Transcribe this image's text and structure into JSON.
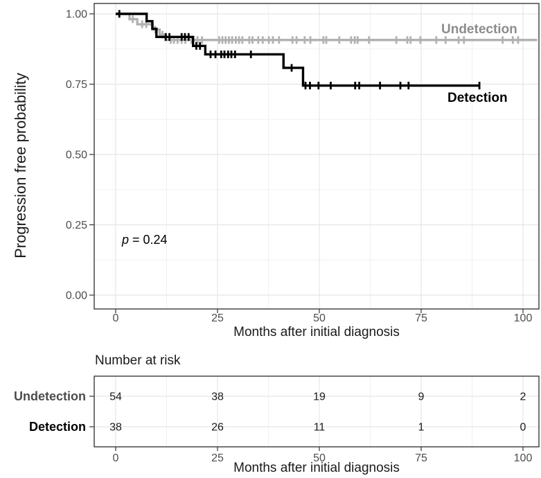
{
  "chart_data": {
    "type": "line",
    "subtype": "kaplan-meier-step",
    "title": "",
    "xlabel": "Months after initial diagnosis",
    "ylabel": "Progression free probability",
    "xlim": [
      0,
      100
    ],
    "ylim": [
      0,
      1
    ],
    "xticks": [
      0,
      25,
      50,
      75,
      100
    ],
    "xtick_labels": [
      "0",
      "25",
      "50",
      "75",
      "100"
    ],
    "yticks": [
      0,
      0.25,
      0.5,
      0.75,
      1
    ],
    "ytick_labels": [
      "0.00",
      "0.25",
      "0.50",
      "0.75",
      "1.00"
    ],
    "grid": true,
    "legend_position": "inline-right",
    "annotation": {
      "symbol": "p",
      "rest": " = 0.24"
    },
    "colors": {
      "grid_major": "#e5e5e5",
      "grid_minor": "#f0f0f0",
      "panel_border": "#2b2b2b",
      "tick": "#333333",
      "tick_label": "#4d4d4d",
      "axis_title": "#1a1a1a"
    },
    "series": [
      {
        "name": "Undetection",
        "color": "#b2b2b2",
        "label_color": "#8c8c8c",
        "end": 103.5,
        "steps": [
          [
            0,
            1.0
          ],
          [
            3.4,
            0.981
          ],
          [
            5.3,
            0.963
          ],
          [
            9.1,
            0.944
          ],
          [
            10.8,
            0.926
          ],
          [
            12.2,
            0.907
          ]
        ],
        "censors": [
          4.2,
          6.5,
          7.5,
          9.7,
          11.5,
          13.5,
          14.3,
          15.2,
          16.2,
          17.1,
          18.6,
          20.1,
          21.2,
          25.4,
          26.2,
          27.0,
          27.8,
          28.6,
          29.5,
          30.3,
          31.1,
          32.8,
          33.6,
          35.0,
          36.1,
          37.6,
          38.6,
          40.1,
          43.4,
          44.4,
          46.4,
          47.8,
          51.0,
          51.7,
          54.9,
          57.8,
          58.7,
          59.4,
          62.2,
          68.9,
          71.6,
          72.4,
          74.8,
          78.7,
          81.0,
          84.2,
          85.5,
          95.0,
          97.5,
          98.8
        ]
      },
      {
        "name": "Detection",
        "color": "#000000",
        "label_color": "#000000",
        "end": 89.5,
        "steps": [
          [
            0,
            1.0
          ],
          [
            7.6,
            0.974
          ],
          [
            9.0,
            0.947
          ],
          [
            10.0,
            0.918
          ],
          [
            19.0,
            0.886
          ],
          [
            22.0,
            0.856
          ],
          [
            41.2,
            0.808
          ],
          [
            46.0,
            0.745
          ]
        ],
        "censors": [
          0.9,
          12.3,
          13.2,
          16.2,
          17.0,
          17.9,
          19.8,
          20.7,
          23.3,
          24.5,
          25.9,
          26.7,
          27.6,
          28.4,
          29.3,
          33.2,
          43.2,
          46.6,
          47.7,
          49.8,
          52.8,
          58.8,
          59.8,
          64.9,
          69.9,
          71.9,
          89.3
        ]
      }
    ],
    "risk_table": {
      "title": "Number at risk",
      "xlabel": "Months after initial diagnosis",
      "times": [
        0,
        25,
        50,
        75,
        100
      ],
      "rows": [
        {
          "name": "Undetection",
          "label_color": "#4d4d4d",
          "values": [
            "54",
            "38",
            "19",
            "9",
            "2"
          ]
        },
        {
          "name": "Detection",
          "label_color": "#000000",
          "values": [
            "38",
            "26",
            "11",
            "1",
            "0"
          ]
        }
      ]
    }
  }
}
